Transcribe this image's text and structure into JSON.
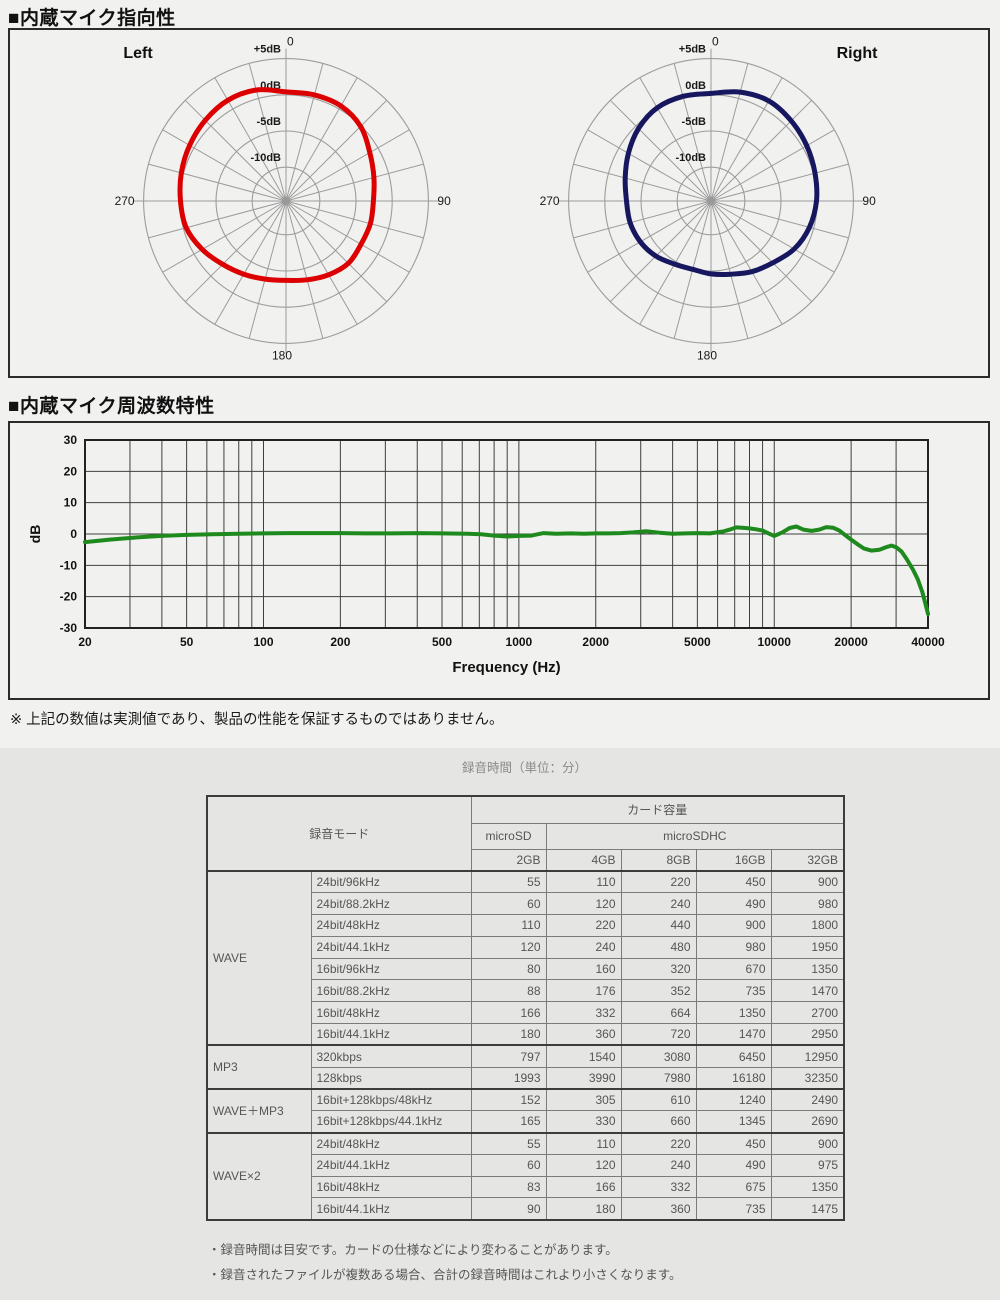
{
  "sections": {
    "directivity_title": "■内蔵マイク指向性",
    "frequency_title": "■内蔵マイク周波数特性",
    "measure_note": "※ 上記の数値は実測値であり、製品の性能を保証するものではありません。"
  },
  "colors": {
    "left_curve": "#dc0000",
    "right_curve": "#17175f",
    "freq_curve": "#1e8a1e",
    "polar_grid": "#9c9c9c",
    "freq_grid": "#3f3f3f"
  },
  "chart_data": [
    {
      "type": "polar",
      "title": "Left",
      "series_color": "#dc0000",
      "angle_unit": "deg",
      "angle_labels": {
        "top": "0",
        "right": "90",
        "bottom": "180",
        "left": "270"
      },
      "rings_db": [
        5,
        0,
        -5,
        -10
      ],
      "ring_labels": [
        "+5dB",
        "0dB",
        "-5dB",
        "-10dB"
      ],
      "angle_step_deg": 15,
      "angles_deg": [
        0,
        15,
        30,
        45,
        60,
        75,
        90,
        105,
        120,
        135,
        150,
        165,
        180,
        195,
        210,
        225,
        240,
        255,
        270,
        285,
        300,
        315,
        330,
        345
      ],
      "values_db": [
        0.4,
        0.5,
        0.5,
        -0.1,
        -1.3,
        -2.1,
        -2.6,
        -2.6,
        -2.7,
        -2.5,
        -2.9,
        -3.4,
        -3.7,
        -3.5,
        -3.0,
        -2.3,
        -1.3,
        -0.4,
        -0.1,
        0.3,
        0.7,
        1.1,
        1.4,
        1.2
      ]
    },
    {
      "type": "polar",
      "title": "Right",
      "series_color": "#17175f",
      "angle_unit": "deg",
      "angle_labels": {
        "top": "0",
        "right": "90",
        "bottom": "180",
        "left": "270"
      },
      "rings_db": [
        5,
        0,
        -5,
        -10
      ],
      "ring_labels": [
        "+5dB",
        "0dB",
        "-5dB",
        "-10dB"
      ],
      "angle_step_deg": 15,
      "angles_deg": [
        0,
        15,
        30,
        45,
        60,
        75,
        90,
        105,
        120,
        135,
        150,
        165,
        180,
        195,
        210,
        225,
        240,
        255,
        270,
        285,
        300,
        315,
        330,
        345
      ],
      "values_db": [
        0.2,
        0.9,
        1.3,
        1.0,
        0.6,
        0.2,
        -0.1,
        -0.6,
        -1.4,
        -2.6,
        -3.4,
        -4.2,
        -4.6,
        -4.9,
        -4.6,
        -3.9,
        -3.4,
        -3.1,
        -3.0,
        -2.4,
        -1.5,
        -0.5,
        0.2,
        0.3
      ]
    },
    {
      "type": "line",
      "subtype": "frequency-response",
      "series_color": "#1e8a1e",
      "xlabel": "Frequency (Hz)",
      "ylabel": "dB",
      "xscale": "log",
      "xlim": [
        20,
        40000
      ],
      "ylim": [
        -30,
        30
      ],
      "x_ticks_labeled": [
        20,
        50,
        100,
        200,
        500,
        1000,
        2000,
        5000,
        10000,
        20000,
        40000
      ],
      "y_ticks": [
        30,
        20,
        10,
        0,
        -10,
        -20,
        -30
      ],
      "grid": true,
      "points": [
        [
          20,
          -2.6
        ],
        [
          25,
          -1.8
        ],
        [
          32,
          -1.1
        ],
        [
          40,
          -0.6
        ],
        [
          50,
          -0.3
        ],
        [
          63,
          -0.1
        ],
        [
          80,
          0.1
        ],
        [
          100,
          0.2
        ],
        [
          125,
          0.3
        ],
        [
          160,
          0.3
        ],
        [
          200,
          0.3
        ],
        [
          250,
          0.2
        ],
        [
          315,
          0.2
        ],
        [
          400,
          0.3
        ],
        [
          500,
          0.2
        ],
        [
          630,
          0.1
        ],
        [
          710,
          -0.1
        ],
        [
          800,
          -0.5
        ],
        [
          900,
          -0.8
        ],
        [
          1000,
          -0.6
        ],
        [
          1120,
          -0.5
        ],
        [
          1250,
          0.3
        ],
        [
          1400,
          0.1
        ],
        [
          1600,
          0.2
        ],
        [
          1800,
          0.1
        ],
        [
          2000,
          0.2
        ],
        [
          2240,
          0.2
        ],
        [
          2500,
          0.3
        ],
        [
          2800,
          0.5
        ],
        [
          3150,
          0.9
        ],
        [
          3550,
          0.4
        ],
        [
          4000,
          0.1
        ],
        [
          4500,
          0.2
        ],
        [
          5000,
          0.3
        ],
        [
          5600,
          0.2
        ],
        [
          6300,
          0.8
        ],
        [
          6700,
          1.4
        ],
        [
          7100,
          2.1
        ],
        [
          7500,
          2.0
        ],
        [
          8000,
          1.8
        ],
        [
          8500,
          1.5
        ],
        [
          9000,
          1.1
        ],
        [
          9500,
          0.2
        ],
        [
          10000,
          -0.6
        ],
        [
          10700,
          0.4
        ],
        [
          11500,
          1.9
        ],
        [
          12200,
          2.4
        ],
        [
          13000,
          1.4
        ],
        [
          14000,
          1.0
        ],
        [
          15000,
          1.4
        ],
        [
          16000,
          2.2
        ],
        [
          17000,
          2.0
        ],
        [
          18000,
          1.1
        ],
        [
          19000,
          -0.4
        ],
        [
          20000,
          -1.8
        ],
        [
          21200,
          -3.3
        ],
        [
          22400,
          -4.6
        ],
        [
          24000,
          -5.3
        ],
        [
          25800,
          -5.0
        ],
        [
          27400,
          -4.2
        ],
        [
          28800,
          -3.7
        ],
        [
          30000,
          -4.2
        ],
        [
          31500,
          -5.6
        ],
        [
          33000,
          -8.0
        ],
        [
          35000,
          -11.5
        ],
        [
          36500,
          -14.5
        ],
        [
          38000,
          -18.5
        ],
        [
          39000,
          -22.0
        ],
        [
          40000,
          -25.5
        ]
      ]
    }
  ],
  "recording_table": {
    "caption": "録音時間（単位：分）",
    "header": {
      "mode": "録音モード",
      "capacity": "カード容量",
      "card_types": [
        "microSD",
        "microSDHC"
      ],
      "sizes": [
        "2GB",
        "4GB",
        "8GB",
        "16GB",
        "32GB"
      ]
    },
    "groups": [
      {
        "name": "WAVE",
        "rows": [
          {
            "mode": "24bit/96kHz",
            "values": [
              "55",
              "110",
              "220",
              "450",
              "900"
            ]
          },
          {
            "mode": "24bit/88.2kHz",
            "values": [
              "60",
              "120",
              "240",
              "490",
              "980"
            ]
          },
          {
            "mode": "24bit/48kHz",
            "values": [
              "110",
              "220",
              "440",
              "900",
              "1800"
            ]
          },
          {
            "mode": "24bit/44.1kHz",
            "values": [
              "120",
              "240",
              "480",
              "980",
              "1950"
            ]
          },
          {
            "mode": "16bit/96kHz",
            "values": [
              "80",
              "160",
              "320",
              "670",
              "1350"
            ]
          },
          {
            "mode": "16bit/88.2kHz",
            "values": [
              "88",
              "176",
              "352",
              "735",
              "1470"
            ]
          },
          {
            "mode": "16bit/48kHz",
            "values": [
              "166",
              "332",
              "664",
              "1350",
              "2700"
            ]
          },
          {
            "mode": "16bit/44.1kHz",
            "values": [
              "180",
              "360",
              "720",
              "1470",
              "2950"
            ]
          }
        ]
      },
      {
        "name": "MP3",
        "rows": [
          {
            "mode": "320kbps",
            "values": [
              "797",
              "1540",
              "3080",
              "6450",
              "12950"
            ]
          },
          {
            "mode": "128kbps",
            "values": [
              "1993",
              "3990",
              "7980",
              "16180",
              "32350"
            ]
          }
        ]
      },
      {
        "name": "WAVE＋MP3",
        "rows": [
          {
            "mode": "16bit+128kbps/48kHz",
            "values": [
              "152",
              "305",
              "610",
              "1240",
              "2490"
            ]
          },
          {
            "mode": "16bit+128kbps/44.1kHz",
            "values": [
              "165",
              "330",
              "660",
              "1345",
              "2690"
            ]
          }
        ]
      },
      {
        "name": "WAVE×2",
        "rows": [
          {
            "mode": "24bit/48kHz",
            "values": [
              "55",
              "110",
              "220",
              "450",
              "900"
            ]
          },
          {
            "mode": "24bit/44.1kHz",
            "values": [
              "60",
              "120",
              "240",
              "490",
              "975"
            ]
          },
          {
            "mode": "16bit/48kHz",
            "values": [
              "83",
              "166",
              "332",
              "675",
              "1350"
            ]
          },
          {
            "mode": "16bit/44.1kHz",
            "values": [
              "90",
              "180",
              "360",
              "735",
              "1475"
            ]
          }
        ]
      }
    ],
    "notes": [
      "・録音時間は目安です。カードの仕様などにより変わることがあります。",
      "・録音されたファイルが複数ある場合、合計の録音時間はこれより小さくなります。"
    ]
  }
}
